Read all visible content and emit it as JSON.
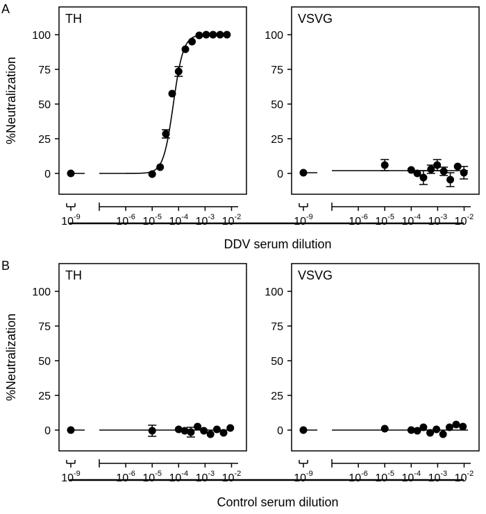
{
  "figure": {
    "x_tick_base": "10",
    "x_ticks_left": [
      {
        "exp": "-9"
      }
    ],
    "x_ticks_right": [
      {
        "exp": "-6"
      },
      {
        "exp": "-5"
      },
      {
        "exp": "-4"
      },
      {
        "exp": "-3"
      },
      {
        "exp": "-2"
      }
    ],
    "y_ticks": [
      "100",
      "75",
      "50",
      "25",
      "0"
    ]
  },
  "chart_data": [
    {
      "type": "scatter",
      "panel": "A",
      "title": "TH",
      "ylabel": "%Neutralization",
      "xlabel": "DDV serum dilution",
      "xscale": "log10",
      "ylim": [
        -15,
        120
      ],
      "control_point": {
        "x": 1e-09,
        "y": 0
      },
      "points": [
        {
          "x": 1e-05,
          "y": -0.5,
          "err": 0
        },
        {
          "x": 2e-05,
          "y": 4.5,
          "err": 0
        },
        {
          "x": 3.3e-05,
          "y": 28.5,
          "err": 3
        },
        {
          "x": 5.7e-05,
          "y": 57.5,
          "err": 0
        },
        {
          "x": 0.0001,
          "y": 73.5,
          "err": 3.5
        },
        {
          "x": 0.00018,
          "y": 89.5,
          "err": 0
        },
        {
          "x": 0.00032,
          "y": 95,
          "err": 0
        },
        {
          "x": 0.0006,
          "y": 99.5,
          "err": 0
        },
        {
          "x": 0.0011,
          "y": 100,
          "err": 0
        },
        {
          "x": 0.002,
          "y": 100,
          "err": 0
        },
        {
          "x": 0.0037,
          "y": 100,
          "err": 0
        },
        {
          "x": 0.0067,
          "y": 100,
          "err": 0
        }
      ],
      "fit": {
        "model": "sigmoid",
        "bottom": 0,
        "top": 100,
        "ec50_log": -4.2,
        "hill": 2.3,
        "x_range": [
          1e-07,
          0.007
        ]
      }
    },
    {
      "type": "scatter",
      "panel": "A",
      "title": "VSVG",
      "ylabel": "",
      "xlabel": "DDV serum dilution",
      "xscale": "log10",
      "ylim": [
        -15,
        120
      ],
      "control_point": {
        "x": 1e-09,
        "y": 0.5
      },
      "points": [
        {
          "x": 1e-05,
          "y": 6,
          "err": 4
        },
        {
          "x": 0.0001,
          "y": 2.5,
          "err": 0
        },
        {
          "x": 0.00017,
          "y": 0,
          "err": 0
        },
        {
          "x": 0.00029,
          "y": -3,
          "err": 5
        },
        {
          "x": 0.00056,
          "y": 3,
          "err": 3
        },
        {
          "x": 0.00096,
          "y": 6,
          "err": 4
        },
        {
          "x": 0.0017,
          "y": 1.5,
          "err": 3
        },
        {
          "x": 0.003,
          "y": -4.5,
          "err": 5
        },
        {
          "x": 0.0057,
          "y": 5,
          "err": 0
        },
        {
          "x": 0.0098,
          "y": 0.5,
          "err": 4.5
        }
      ],
      "fit": {
        "model": "constant",
        "y": 2,
        "x_range": [
          1e-07,
          0.014
        ]
      }
    },
    {
      "type": "scatter",
      "panel": "B",
      "title": "TH",
      "ylabel": "%Neutralization",
      "xlabel": "Control serum dilution",
      "xscale": "log10",
      "ylim": [
        -15,
        120
      ],
      "control_point": {
        "x": 1e-09,
        "y": 0
      },
      "points": [
        {
          "x": 1e-05,
          "y": -0.5,
          "err": 4
        },
        {
          "x": 0.0001,
          "y": 0.5,
          "err": 0
        },
        {
          "x": 0.00017,
          "y": -0.5,
          "err": 0
        },
        {
          "x": 0.00029,
          "y": -1.5,
          "err": 3.5
        },
        {
          "x": 0.00052,
          "y": 2.5,
          "err": 0
        },
        {
          "x": 0.0009,
          "y": -0.5,
          "err": 0
        },
        {
          "x": 0.0016,
          "y": -3,
          "err": 0
        },
        {
          "x": 0.0028,
          "y": 0.5,
          "err": 0
        },
        {
          "x": 0.005,
          "y": -2,
          "err": 0
        },
        {
          "x": 0.009,
          "y": 1.5,
          "err": 0
        }
      ],
      "fit": {
        "model": "constant",
        "y": 0,
        "x_range": [
          1e-07,
          0.007
        ]
      }
    },
    {
      "type": "scatter",
      "panel": "B",
      "title": "VSVG",
      "ylabel": "",
      "xlabel": "Control serum dilution",
      "xscale": "log10",
      "ylim": [
        -15,
        120
      ],
      "control_point": {
        "x": 1e-09,
        "y": 0
      },
      "points": [
        {
          "x": 1e-05,
          "y": 1,
          "err": 0
        },
        {
          "x": 0.0001,
          "y": 0,
          "err": 0
        },
        {
          "x": 0.00017,
          "y": -0.5,
          "err": 0
        },
        {
          "x": 0.00029,
          "y": 2,
          "err": 0
        },
        {
          "x": 0.00052,
          "y": -2,
          "err": 0
        },
        {
          "x": 0.0009,
          "y": 0.5,
          "err": 0
        },
        {
          "x": 0.0016,
          "y": -3,
          "err": 0
        },
        {
          "x": 0.0028,
          "y": 2,
          "err": 0
        },
        {
          "x": 0.005,
          "y": 4,
          "err": 0
        },
        {
          "x": 0.009,
          "y": 2.5,
          "err": 0
        }
      ],
      "fit": {
        "model": "constant",
        "y": 0,
        "x_range": [
          1e-07,
          0.014
        ]
      }
    }
  ]
}
